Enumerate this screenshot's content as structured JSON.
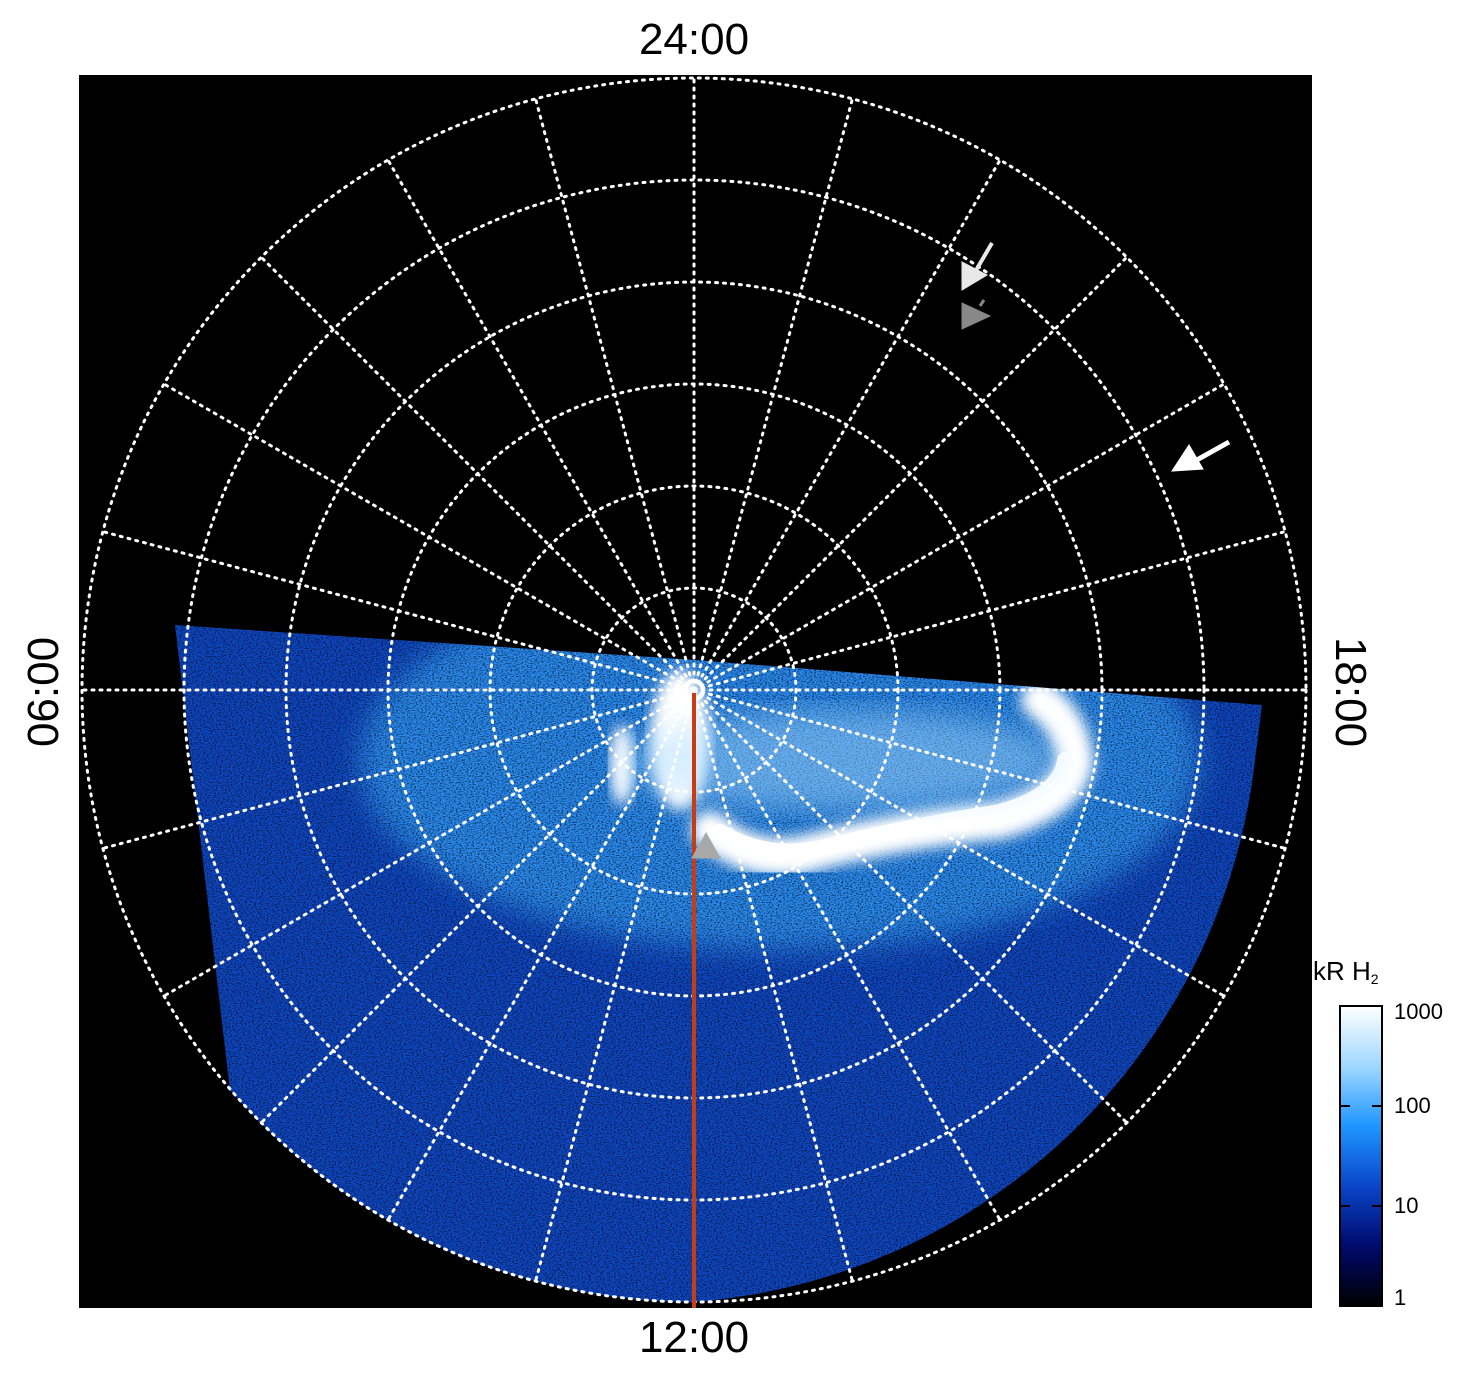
{
  "chart_data": {
    "type": "heatmap",
    "projection": "polar",
    "title": "",
    "local_time_labels": {
      "top": "24:00",
      "bottom": "12:00",
      "left": "06:00",
      "right": "18:00"
    },
    "grid": true,
    "grid_style": "dotted white",
    "meridian_count": 24,
    "latitude_circle_count": 6,
    "colorbar": {
      "title": "kR H",
      "title_subscript": "2",
      "scale": "log",
      "range": [
        1,
        1000
      ],
      "ticks": [
        "1000",
        "100",
        "10",
        "1"
      ],
      "tick_values": [
        1000,
        100,
        10,
        1
      ],
      "colors": [
        "#000000",
        "#000a6e",
        "#0a46c8",
        "#1e96ff",
        "#a0d8ff",
        "#ffffff"
      ]
    },
    "observed_region": "dayside hemisphere, local time 06:00 through 12:00 to 18:00",
    "emission_features": [
      {
        "name": "main oval arc",
        "local_time": "14:00-17:30",
        "intensity_kR": 1000
      },
      {
        "name": "dawn arc",
        "local_time": "07:30-08:30",
        "intensity_kR": 600
      },
      {
        "name": "noon spot",
        "local_time": "12:00",
        "intensity_kR": 1000
      }
    ],
    "annotations": [
      {
        "type": "arrow",
        "color": "#e8e8e8",
        "position": "pre-midnight, 20:00 sector"
      },
      {
        "type": "arrow",
        "color": "#888888",
        "position": "pre-midnight, 20:00 sector"
      },
      {
        "type": "arrow",
        "color": "#ffffff",
        "position": "dusk, 19:30 sector"
      },
      {
        "type": "arrow",
        "color": "#a8a8a8",
        "position": "noon meridian"
      }
    ],
    "reference_line": {
      "color": "#c83c14",
      "local_time": "12:00"
    }
  }
}
